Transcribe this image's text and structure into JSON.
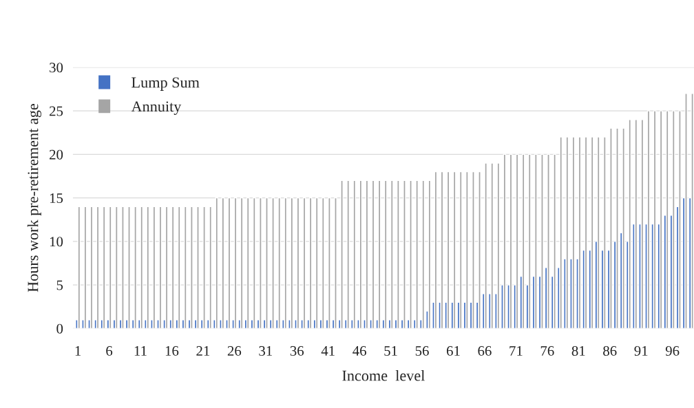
{
  "chart_data": {
    "type": "bar",
    "xlabel": "Income  level",
    "ylabel": "Hours work pre-retirement age",
    "categories": [
      "1",
      null,
      null,
      null,
      null,
      "6",
      null,
      null,
      null,
      null,
      "11",
      null,
      null,
      null,
      null,
      "16",
      null,
      null,
      null,
      null,
      "21",
      null,
      null,
      null,
      null,
      "26",
      null,
      null,
      null,
      null,
      "31",
      null,
      null,
      null,
      null,
      "36",
      null,
      null,
      null,
      null,
      "41",
      null,
      null,
      null,
      null,
      "46",
      null,
      null,
      null,
      null,
      "51",
      null,
      null,
      null,
      null,
      "56",
      null,
      null,
      null,
      null,
      "61",
      null,
      null,
      null,
      null,
      "66",
      null,
      null,
      null,
      null,
      "71",
      null,
      null,
      null,
      null,
      "76",
      null,
      null,
      null,
      null,
      "81",
      null,
      null,
      null,
      null,
      "86",
      null,
      null,
      null,
      null,
      "91",
      null,
      null,
      null,
      null,
      "96",
      null,
      null,
      null
    ],
    "series": [
      {
        "name": "Lump Sum",
        "color": "#4472c4",
        "values": [
          1,
          1,
          1,
          1,
          1,
          1,
          1,
          1,
          1,
          1,
          1,
          1,
          1,
          1,
          1,
          1,
          1,
          1,
          1,
          1,
          1,
          1,
          1,
          1,
          1,
          1,
          1,
          1,
          1,
          1,
          1,
          1,
          1,
          1,
          1,
          1,
          1,
          1,
          1,
          1,
          1,
          1,
          1,
          1,
          1,
          1,
          1,
          1,
          1,
          1,
          1,
          1,
          1,
          1,
          1,
          1,
          2,
          3,
          3,
          3,
          3,
          3,
          3,
          3,
          3,
          4,
          4,
          4,
          5,
          5,
          5,
          6,
          5,
          6,
          6,
          7,
          6,
          7,
          8,
          8,
          8,
          9,
          9,
          10,
          9,
          9,
          10,
          11,
          10,
          12,
          12,
          12,
          12,
          12,
          13,
          13,
          14,
          15,
          15
        ]
      },
      {
        "name": "Annuity",
        "color": "#a5a5a5",
        "values": [
          14,
          14,
          14,
          14,
          14,
          14,
          14,
          14,
          14,
          14,
          14,
          14,
          14,
          14,
          14,
          14,
          14,
          14,
          14,
          14,
          14,
          14,
          15,
          15,
          15,
          15,
          15,
          15,
          15,
          15,
          15,
          15,
          15,
          15,
          15,
          15,
          15,
          15,
          15,
          15,
          15,
          15,
          17,
          17,
          17,
          17,
          17,
          17,
          17,
          17,
          17,
          17,
          17,
          17,
          17,
          17,
          17,
          18,
          18,
          18,
          18,
          18,
          18,
          18,
          18,
          19,
          19,
          19,
          20,
          20,
          20,
          20,
          20,
          20,
          20,
          20,
          20,
          22,
          22,
          22,
          22,
          22,
          22,
          22,
          22,
          23,
          23,
          23,
          24,
          24,
          24,
          25,
          25,
          25,
          25,
          25,
          25,
          27,
          27
        ]
      }
    ],
    "ylim": [
      0,
      30
    ],
    "yticks": [
      0,
      5,
      10,
      15,
      20,
      25,
      30
    ],
    "grid": "y",
    "legend": "top left"
  }
}
